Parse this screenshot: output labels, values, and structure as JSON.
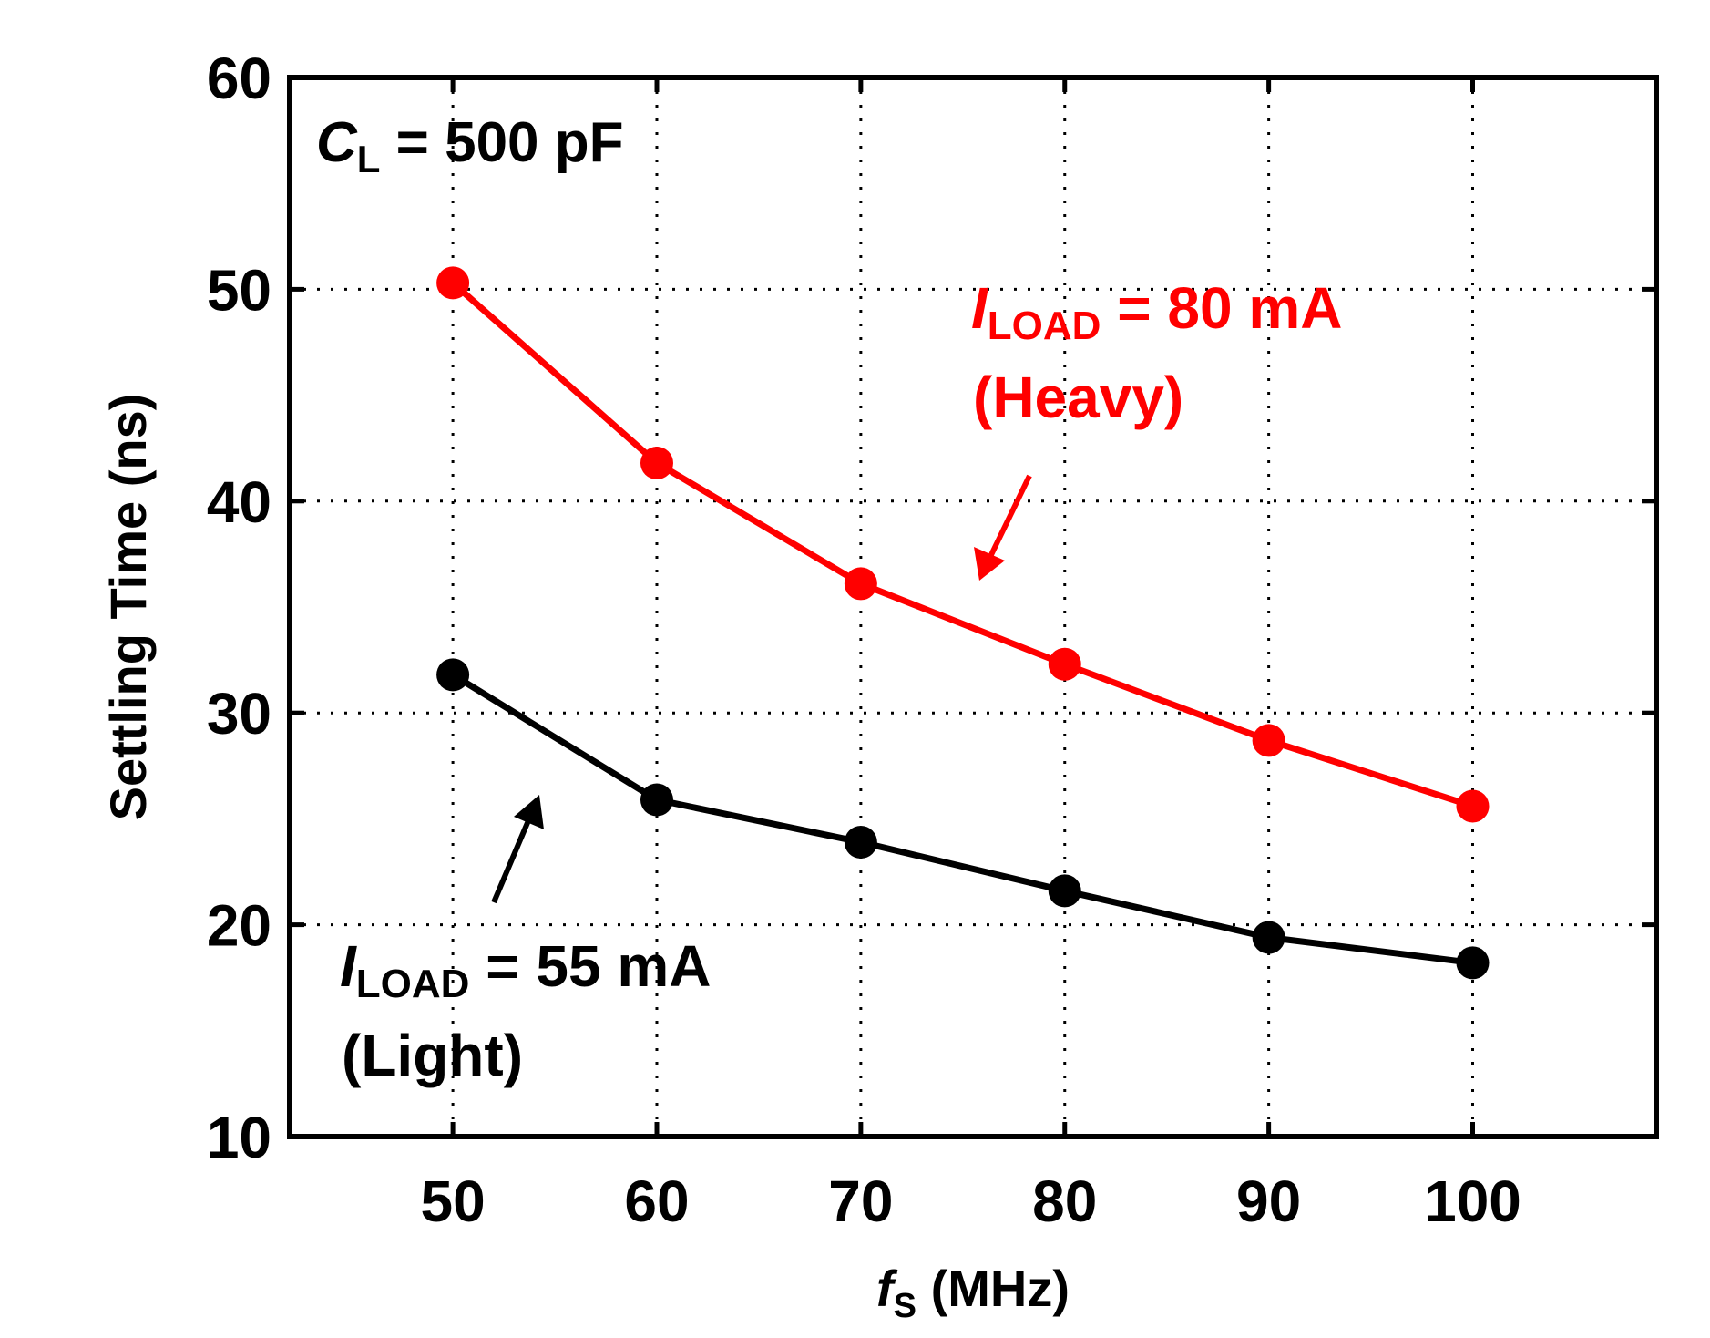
{
  "chart_data": {
    "type": "line",
    "title": "",
    "xlabel": {
      "var": "f",
      "sub": "S",
      "rest": " (MHz)"
    },
    "ylabel": "Settling Time (ns)",
    "x": [
      50,
      60,
      70,
      80,
      90,
      100
    ],
    "x_ticks": [
      "50",
      "60",
      "70",
      "80",
      "90",
      "100"
    ],
    "y_ticks": [
      "10",
      "20",
      "30",
      "40",
      "50",
      "60"
    ],
    "xlim": [
      42,
      109
    ],
    "ylim": [
      10,
      60
    ],
    "grid": true,
    "annotation": {
      "var": "C",
      "sub": "L",
      "rest": " = 500 pF"
    },
    "series": [
      {
        "name": "Heavy",
        "color": "#ff0000",
        "values": [
          50.3,
          41.8,
          36.1,
          32.3,
          28.7,
          25.6
        ],
        "label_var": "I",
        "label_sub": "LOAD",
        "label_rest": " = 80 mA",
        "label_line2": "(Heavy)"
      },
      {
        "name": "Light",
        "color": "#000000",
        "values": [
          31.8,
          25.9,
          23.9,
          21.6,
          19.4,
          18.2
        ],
        "label_var": "I",
        "label_sub": "LOAD",
        "label_rest": " = 55 mA",
        "label_line2": "(Light)"
      }
    ]
  }
}
